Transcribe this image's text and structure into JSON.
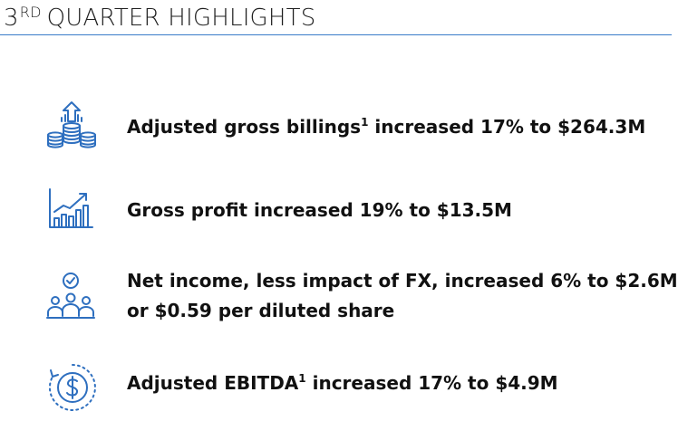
{
  "header": {
    "title_number": "3",
    "title_suffix": "RD",
    "title_rest": "QUARTER HIGHLIGHTS"
  },
  "highlights": [
    {
      "icon": "coin-stack-arrow-icon",
      "text_before_sup": "Adjusted gross billings",
      "sup": "1",
      "text_after_sup": " increased 17% to $264.3M"
    },
    {
      "icon": "bar-chart-growth-icon",
      "line1": "Gross profit increased 19% to $13.5M"
    },
    {
      "icon": "team-check-icon",
      "line1": "Net income, less impact of FX, increased 6% to $2.6M",
      "line2": "or $0.59 per diluted share"
    },
    {
      "icon": "dollar-cycle-icon",
      "text_before_sup": "Adjusted EBITDA",
      "sup": "1",
      "text_after_sup": " increased 17% to $4.9M"
    }
  ],
  "colors": {
    "icon_blue": "#2e6fbf",
    "rule_blue": "#3a7cc9"
  }
}
